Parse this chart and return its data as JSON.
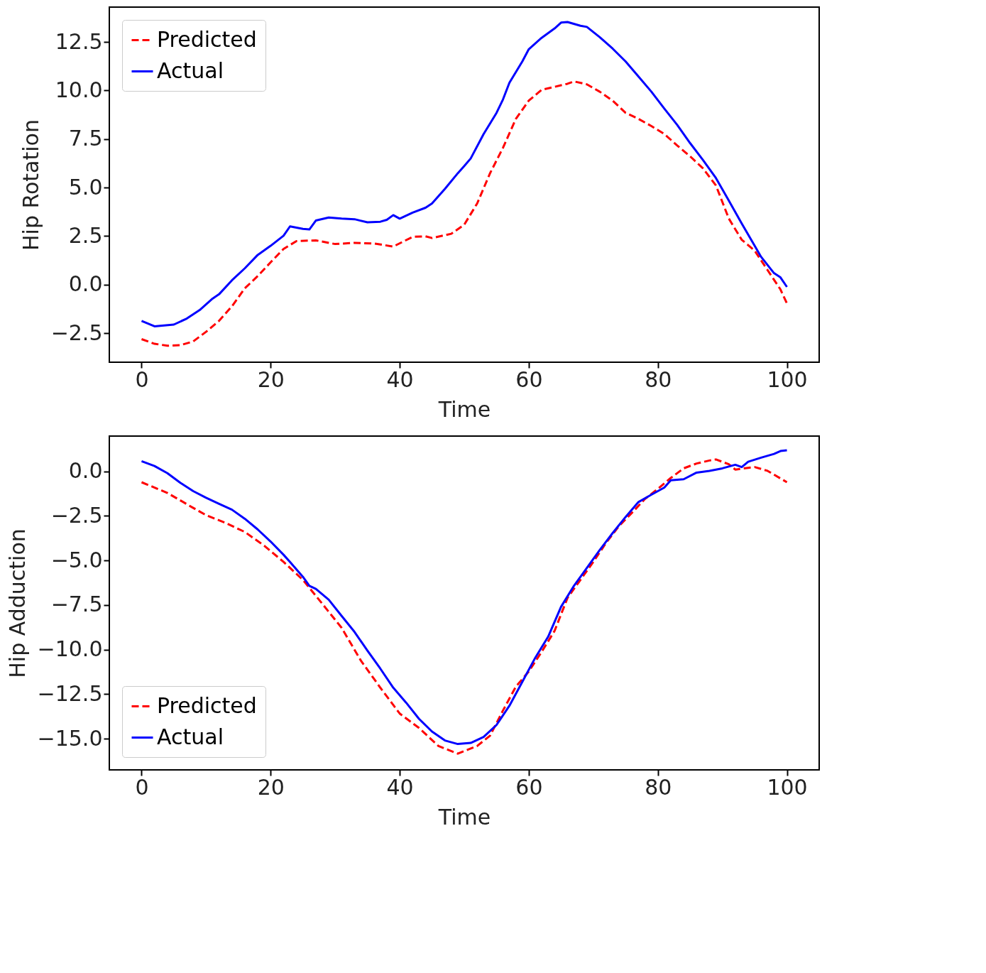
{
  "chart_data": [
    {
      "type": "line",
      "xlabel": "Time",
      "ylabel": "Hip Rotation",
      "xlim": [
        -5,
        105
      ],
      "ylim": [
        -4.0,
        14.3
      ],
      "xticks": [
        0,
        20,
        40,
        60,
        80,
        100
      ],
      "yticks": [
        {
          "value": -2.5,
          "label": "−2.5"
        },
        {
          "value": 0,
          "label": "0.0"
        },
        {
          "value": 2.5,
          "label": "2.5"
        },
        {
          "value": 5,
          "label": "5.0"
        },
        {
          "value": 7.5,
          "label": "7.5"
        },
        {
          "value": 10,
          "label": "10.0"
        },
        {
          "value": 12.5,
          "label": "12.5"
        }
      ],
      "legend": "top left",
      "grid": false,
      "series": [
        {
          "name": "Predicted",
          "color": "#ff0000",
          "line_style": "dashed",
          "x": [
            0,
            2,
            4,
            6,
            8,
            10,
            12,
            14,
            16,
            18,
            20,
            22,
            24,
            27,
            30,
            33,
            36,
            39,
            42,
            44,
            45,
            48,
            50,
            52,
            54,
            56,
            58,
            60,
            62,
            64,
            66,
            67,
            69,
            71,
            73,
            75,
            77,
            79,
            81,
            83,
            85,
            87,
            89,
            91,
            93,
            95,
            97,
            99,
            100
          ],
          "values": [
            -2.81,
            -3.05,
            -3.15,
            -3.12,
            -2.93,
            -2.43,
            -1.87,
            -1.12,
            -0.19,
            0.44,
            1.15,
            1.84,
            2.24,
            2.28,
            2.09,
            2.15,
            2.12,
            1.96,
            2.46,
            2.49,
            2.4,
            2.62,
            3.09,
            4.18,
            5.74,
            7.05,
            8.54,
            9.48,
            10.04,
            10.19,
            10.35,
            10.47,
            10.32,
            9.94,
            9.48,
            8.85,
            8.54,
            8.17,
            7.76,
            7.17,
            6.61,
            5.99,
            5.11,
            3.4,
            2.31,
            1.75,
            0.75,
            -0.25,
            -0.97
          ]
        },
        {
          "name": "Actual",
          "color": "#0000ff",
          "line_style": "solid",
          "x": [
            0,
            2,
            5,
            7,
            9,
            11,
            12,
            14,
            16,
            18,
            20,
            22,
            23,
            25,
            26,
            27,
            29,
            31,
            33,
            35,
            37,
            38,
            39,
            40,
            42,
            44,
            45,
            47,
            49,
            50,
            51,
            53,
            55,
            56,
            57,
            59,
            60,
            62,
            64,
            65,
            66,
            68,
            69,
            71,
            73,
            75,
            77,
            79,
            81,
            83,
            85,
            87,
            89,
            91,
            93,
            95,
            96,
            98,
            99,
            100
          ],
          "values": [
            -1.87,
            -2.15,
            -2.06,
            -1.75,
            -1.31,
            -0.72,
            -0.5,
            0.22,
            0.84,
            1.53,
            2.0,
            2.52,
            3.0,
            2.87,
            2.84,
            3.3,
            3.46,
            3.4,
            3.37,
            3.21,
            3.24,
            3.34,
            3.58,
            3.4,
            3.71,
            3.96,
            4.18,
            4.93,
            5.74,
            6.11,
            6.5,
            7.76,
            8.85,
            9.54,
            10.4,
            11.5,
            12.13,
            12.72,
            13.2,
            13.5,
            13.53,
            13.34,
            13.28,
            12.75,
            12.16,
            11.5,
            10.72,
            9.94,
            9.07,
            8.23,
            7.29,
            6.42,
            5.49,
            4.33,
            3.15,
            2.0,
            1.43,
            0.59,
            0.37,
            -0.12
          ]
        }
      ]
    },
    {
      "type": "line",
      "xlabel": "Time",
      "ylabel": "Hip Adduction",
      "xlim": [
        -5,
        105
      ],
      "ylim": [
        -16.75,
        1.98
      ],
      "xticks": [
        0,
        20,
        40,
        60,
        80,
        100
      ],
      "yticks": [
        {
          "value": -15,
          "label": "−15.0"
        },
        {
          "value": -12.5,
          "label": "−12.5"
        },
        {
          "value": -10,
          "label": "−10.0"
        },
        {
          "value": -7.5,
          "label": "−7.5"
        },
        {
          "value": -5,
          "label": "−5.0"
        },
        {
          "value": -2.5,
          "label": "−2.5"
        },
        {
          "value": 0,
          "label": "0.0"
        }
      ],
      "legend": "bottom left",
      "grid": false,
      "series": [
        {
          "name": "Predicted",
          "color": "#ff0000",
          "line_style": "dashed",
          "x": [
            0,
            4,
            8,
            10,
            13,
            16,
            19,
            22,
            25,
            28,
            31,
            34,
            37,
            40,
            43,
            46,
            49,
            52,
            54,
            56,
            58,
            60,
            62,
            64,
            66,
            68,
            70,
            72,
            74,
            76,
            78,
            80,
            82,
            84,
            86,
            88,
            89,
            91,
            92,
            94,
            95,
            97,
            100
          ],
          "values": [
            -0.61,
            -1.21,
            -2.05,
            -2.46,
            -2.89,
            -3.4,
            -4.17,
            -5.08,
            -6.09,
            -7.43,
            -8.78,
            -10.63,
            -12.14,
            -13.59,
            -14.4,
            -15.41,
            -15.84,
            -15.41,
            -14.83,
            -13.42,
            -12.08,
            -11.23,
            -10.12,
            -8.95,
            -7.1,
            -6.09,
            -5.08,
            -4.0,
            -3.06,
            -2.32,
            -1.55,
            -0.98,
            -0.37,
            0.17,
            0.44,
            0.61,
            0.67,
            0.4,
            0.1,
            0.2,
            0.24,
            0.03,
            -0.61
          ]
        },
        {
          "name": "Actual",
          "color": "#0000ff",
          "line_style": "solid",
          "x": [
            0,
            2,
            4,
            6,
            8,
            10,
            12,
            14,
            16,
            18,
            20,
            22,
            23,
            25,
            26,
            27,
            29,
            31,
            33,
            35,
            37,
            39,
            41,
            43,
            45,
            47,
            49,
            51,
            53,
            55,
            57,
            59,
            61,
            63,
            65,
            67,
            69,
            71,
            73,
            75,
            77,
            79,
            81,
            82,
            84,
            86,
            88,
            90,
            92,
            93,
            94,
            96,
            98,
            99,
            100
          ],
          "values": [
            0.57,
            0.3,
            -0.1,
            -0.64,
            -1.11,
            -1.48,
            -1.82,
            -2.15,
            -2.66,
            -3.26,
            -3.94,
            -4.68,
            -5.08,
            -5.92,
            -6.42,
            -6.59,
            -7.2,
            -8.11,
            -9.01,
            -10.06,
            -11.07,
            -12.14,
            -12.98,
            -13.89,
            -14.6,
            -15.1,
            -15.3,
            -15.24,
            -14.9,
            -14.23,
            -13.15,
            -11.81,
            -10.46,
            -9.28,
            -7.6,
            -6.42,
            -5.42,
            -4.41,
            -3.46,
            -2.56,
            -1.72,
            -1.31,
            -0.91,
            -0.5,
            -0.44,
            -0.07,
            0.03,
            0.17,
            0.37,
            0.24,
            0.54,
            0.77,
            0.98,
            1.14,
            1.18
          ]
        }
      ]
    }
  ]
}
